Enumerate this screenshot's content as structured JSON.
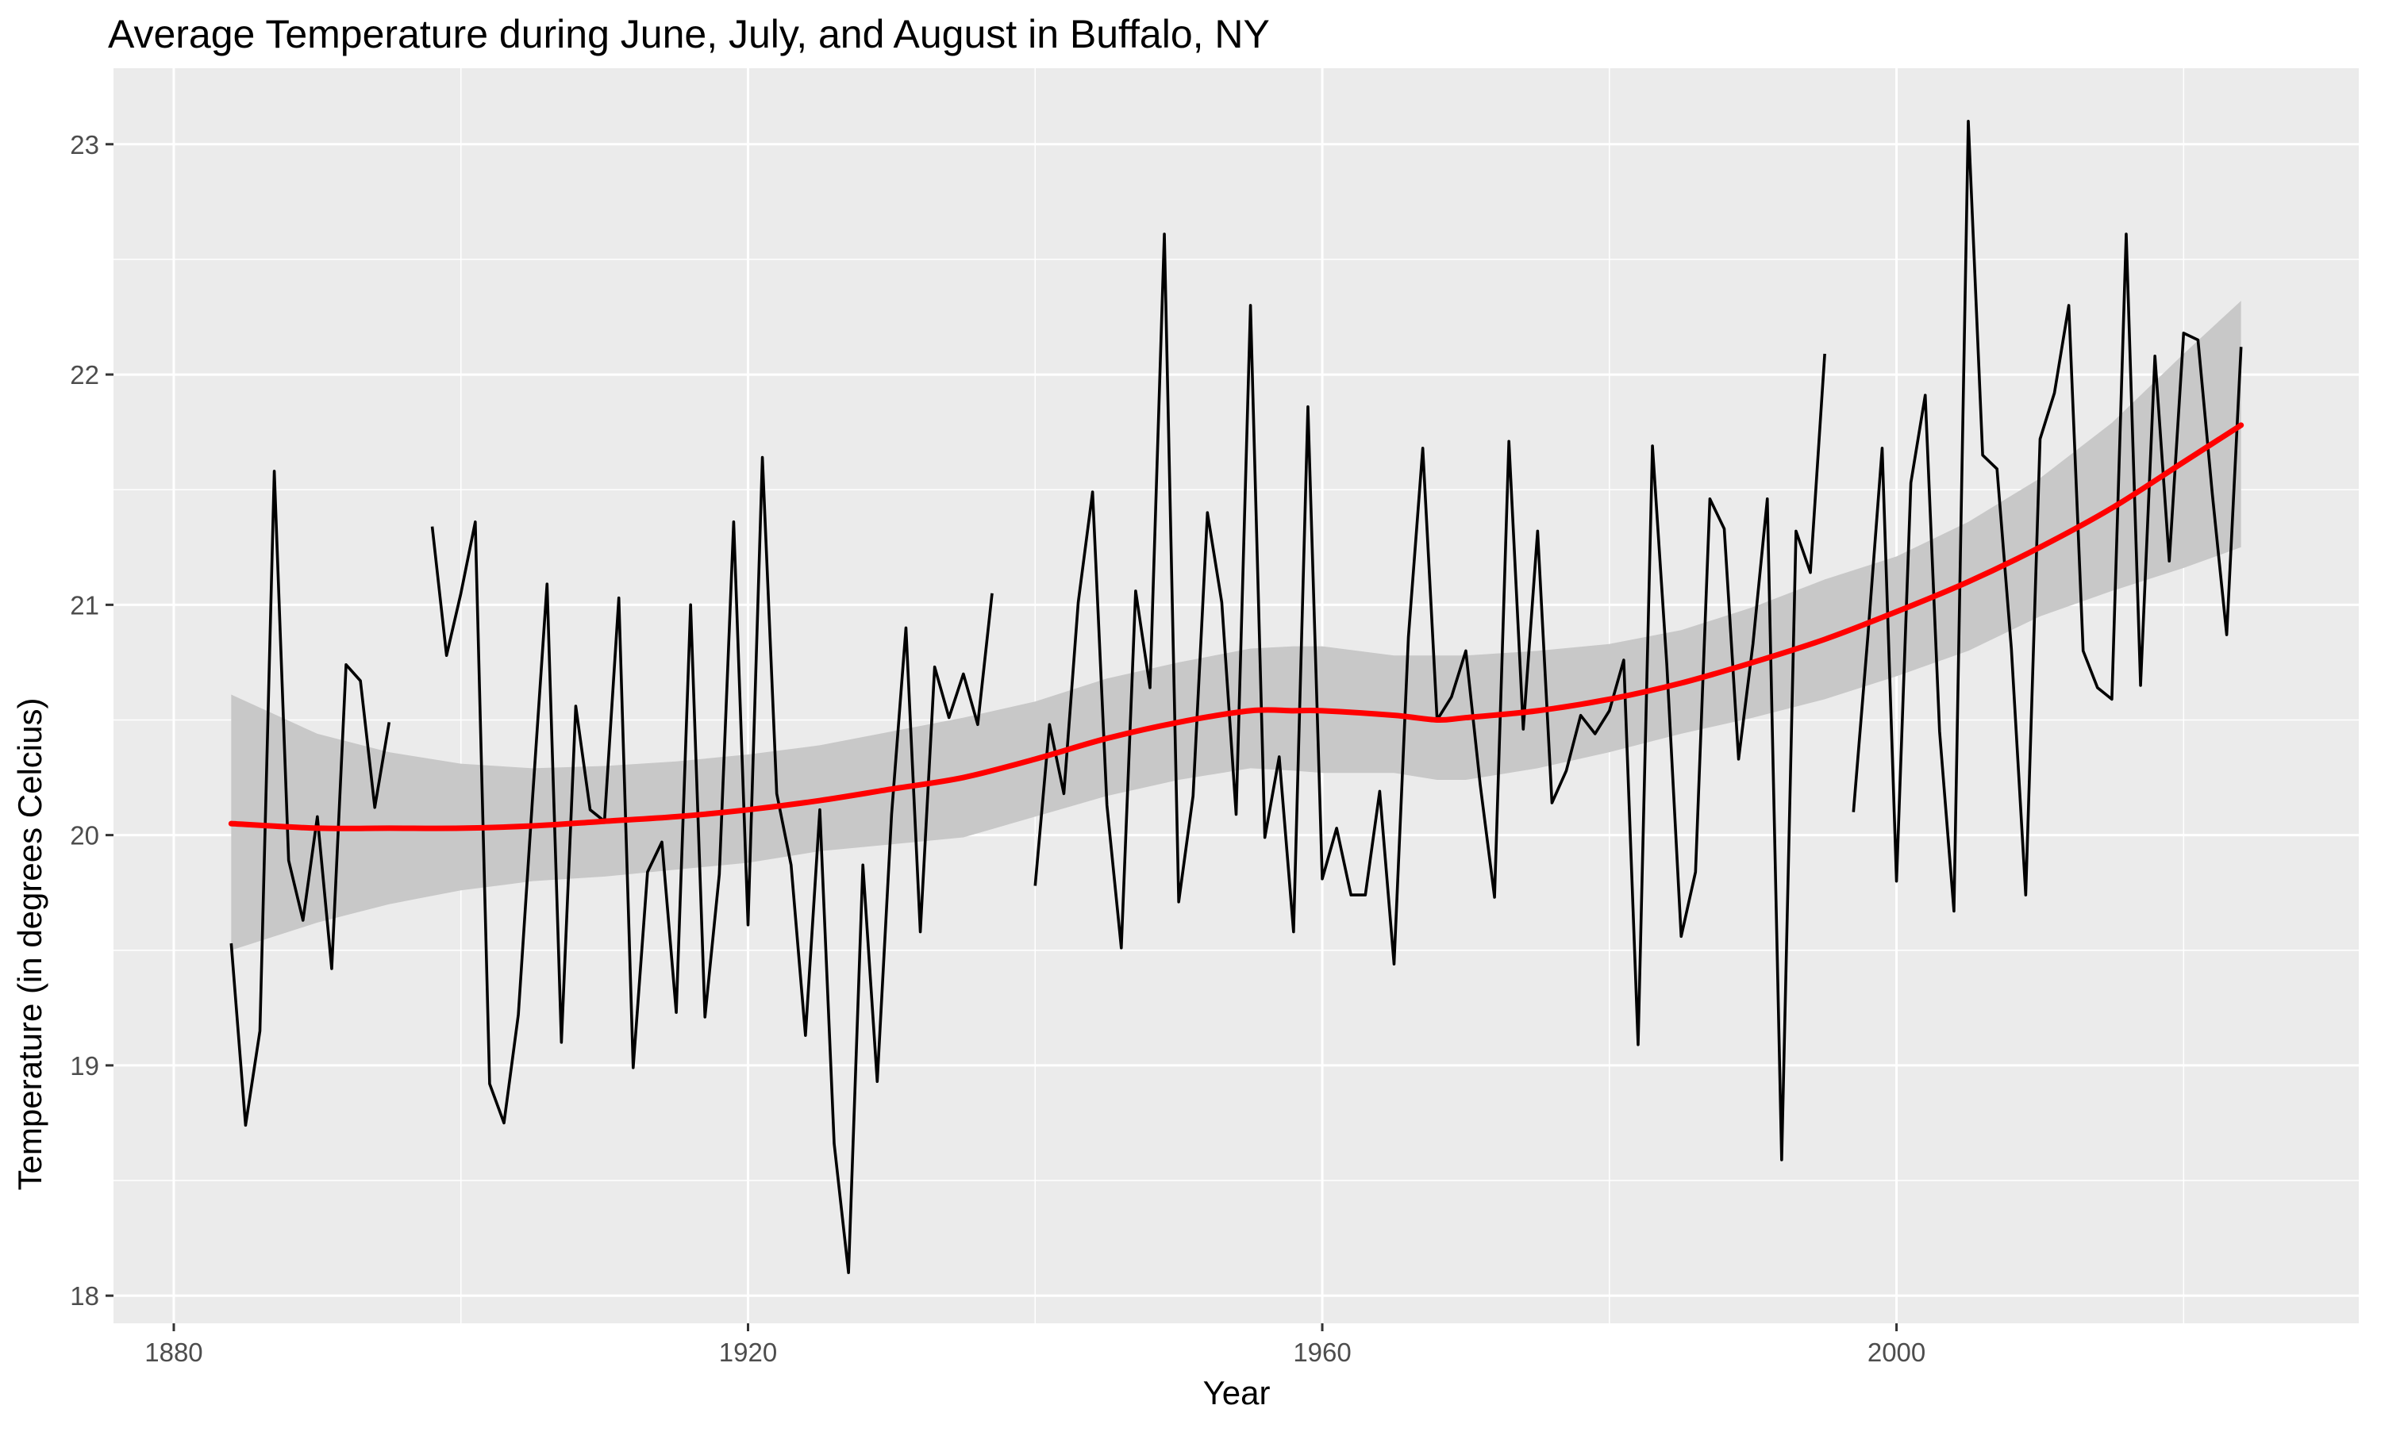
{
  "chart_data": {
    "type": "line",
    "title": "Average Temperature during June, July, and August in Buffalo, NY",
    "xlabel": "Year",
    "ylabel": "Temperature (in degrees Celcius)",
    "xlim": [
      1875.8,
      2032.2
    ],
    "ylim": [
      17.88,
      23.33
    ],
    "x_ticks": [
      1880,
      1920,
      1960,
      2000
    ],
    "y_ticks": [
      18,
      19,
      20,
      21,
      22,
      23
    ],
    "grid": true,
    "legend": "none",
    "colors": {
      "panel_background": "#ebebeb",
      "grid": "#ffffff",
      "data_line": "#000000",
      "smooth_line": "#ff0000",
      "confidence_band": "#c8c8c8"
    },
    "series": [
      {
        "type": "line",
        "segments": [
          {
            "x": [
              1884,
              1885,
              1886,
              1887,
              1888,
              1889,
              1890,
              1891,
              1892,
              1893,
              1894,
              1895
            ],
            "values": [
              19.53,
              18.74,
              19.15,
              21.58,
              19.89,
              19.63,
              20.08,
              19.42,
              20.74,
              20.67,
              20.12,
              20.49
            ]
          },
          {
            "x": [
              1898,
              1899,
              1900,
              1901,
              1902,
              1903,
              1904,
              1905,
              1906,
              1907,
              1908,
              1909,
              1910,
              1911,
              1912,
              1913,
              1914,
              1915,
              1916,
              1917,
              1918,
              1919,
              1920,
              1921,
              1922,
              1923,
              1924,
              1925,
              1926,
              1927,
              1928,
              1929,
              1930,
              1931,
              1932,
              1933,
              1934,
              1935,
              1936,
              1937
            ],
            "values": [
              21.34,
              20.78,
              21.05,
              21.36,
              18.92,
              18.75,
              19.22,
              20.17,
              21.09,
              19.1,
              20.56,
              20.11,
              20.06,
              21.03,
              18.99,
              19.84,
              19.97,
              19.23,
              21.0,
              19.21,
              19.83,
              21.36,
              19.61,
              21.64,
              20.18,
              19.87,
              19.13,
              20.11,
              18.66,
              18.1,
              19.87,
              18.93,
              20.09,
              20.9,
              19.58,
              20.73,
              20.51,
              20.7,
              20.48,
              21.05
            ]
          },
          {
            "x": [
              1940,
              1941,
              1942,
              1943,
              1944,
              1945,
              1946,
              1947,
              1948,
              1949,
              1950,
              1951,
              1952,
              1953,
              1954,
              1955,
              1956,
              1957,
              1958,
              1959,
              1960,
              1961,
              1962,
              1963,
              1964,
              1965,
              1966,
              1967,
              1968,
              1969,
              1970,
              1971,
              1972,
              1973,
              1974,
              1975,
              1976,
              1977,
              1978,
              1979,
              1980,
              1981,
              1982,
              1983,
              1984,
              1985,
              1986,
              1987,
              1988,
              1989,
              1990,
              1991,
              1992,
              1993,
              1994,
              1995
            ],
            "values": [
              19.78,
              20.48,
              20.18,
              21.01,
              21.49,
              20.13,
              19.51,
              21.06,
              20.64,
              22.61,
              19.71,
              20.17,
              21.4,
              21.01,
              20.09,
              22.3,
              19.99,
              20.34,
              19.58,
              21.86,
              19.81,
              20.03,
              19.74,
              19.74,
              20.19,
              19.44,
              20.86,
              21.68,
              20.5,
              20.6,
              20.8,
              20.22,
              19.73,
              21.71,
              20.46,
              21.32,
              20.14,
              20.28,
              20.52,
              20.44,
              20.54,
              20.76,
              19.09,
              21.69,
              20.74,
              19.56,
              19.84,
              21.46,
              21.33,
              20.33,
              20.83,
              21.46,
              18.59,
              21.32,
              21.14,
              22.09
            ]
          },
          {
            "x": [
              1997,
              1998,
              1999,
              2000,
              2001,
              2002,
              2003,
              2004,
              2005,
              2006,
              2007,
              2008,
              2009,
              2010,
              2011,
              2012,
              2013,
              2014,
              2015,
              2016,
              2017,
              2018,
              2019,
              2020,
              2021,
              2022,
              2023,
              2024
            ],
            "values": [
              20.1,
              20.86,
              21.68,
              19.8,
              21.53,
              21.91,
              20.45,
              19.67,
              23.1,
              21.65,
              21.59,
              20.81,
              19.74,
              21.72,
              21.92,
              22.3,
              20.8,
              20.64,
              20.59,
              22.61,
              20.65,
              22.08,
              21.19,
              22.18,
              22.15,
              21.48,
              20.87,
              22.12
            ]
          }
        ]
      },
      {
        "type": "smooth",
        "x": [
          1884,
          1890,
          1895,
          1900,
          1905,
          1910,
          1915,
          1920,
          1925,
          1930,
          1935,
          1940,
          1945,
          1950,
          1955,
          1958,
          1960,
          1965,
          1968,
          1970,
          1975,
          1980,
          1985,
          1990,
          1995,
          2000,
          2005,
          2010,
          2015,
          2020,
          2024
        ],
        "values": [
          20.05,
          20.03,
          20.03,
          20.03,
          20.04,
          20.06,
          20.08,
          20.11,
          20.15,
          20.2,
          20.25,
          20.33,
          20.42,
          20.49,
          20.54,
          20.54,
          20.54,
          20.52,
          20.5,
          20.51,
          20.54,
          20.59,
          20.66,
          20.75,
          20.85,
          20.97,
          21.1,
          21.25,
          21.42,
          21.62,
          21.78
        ],
        "band_lower": [
          19.5,
          19.62,
          19.7,
          19.76,
          19.8,
          19.82,
          19.85,
          19.88,
          19.93,
          19.96,
          19.99,
          20.08,
          20.17,
          20.24,
          20.29,
          20.28,
          20.27,
          20.27,
          20.24,
          20.24,
          20.29,
          20.36,
          20.44,
          20.51,
          20.59,
          20.69,
          20.8,
          20.95,
          21.06,
          21.16,
          21.25
        ],
        "band_upper": [
          20.61,
          20.44,
          20.36,
          20.31,
          20.29,
          20.3,
          20.32,
          20.35,
          20.39,
          20.45,
          20.51,
          20.58,
          20.68,
          20.75,
          20.81,
          20.82,
          20.82,
          20.78,
          20.78,
          20.78,
          20.8,
          20.83,
          20.89,
          20.99,
          21.11,
          21.21,
          21.36,
          21.55,
          21.79,
          22.09,
          22.32
        ]
      }
    ]
  }
}
